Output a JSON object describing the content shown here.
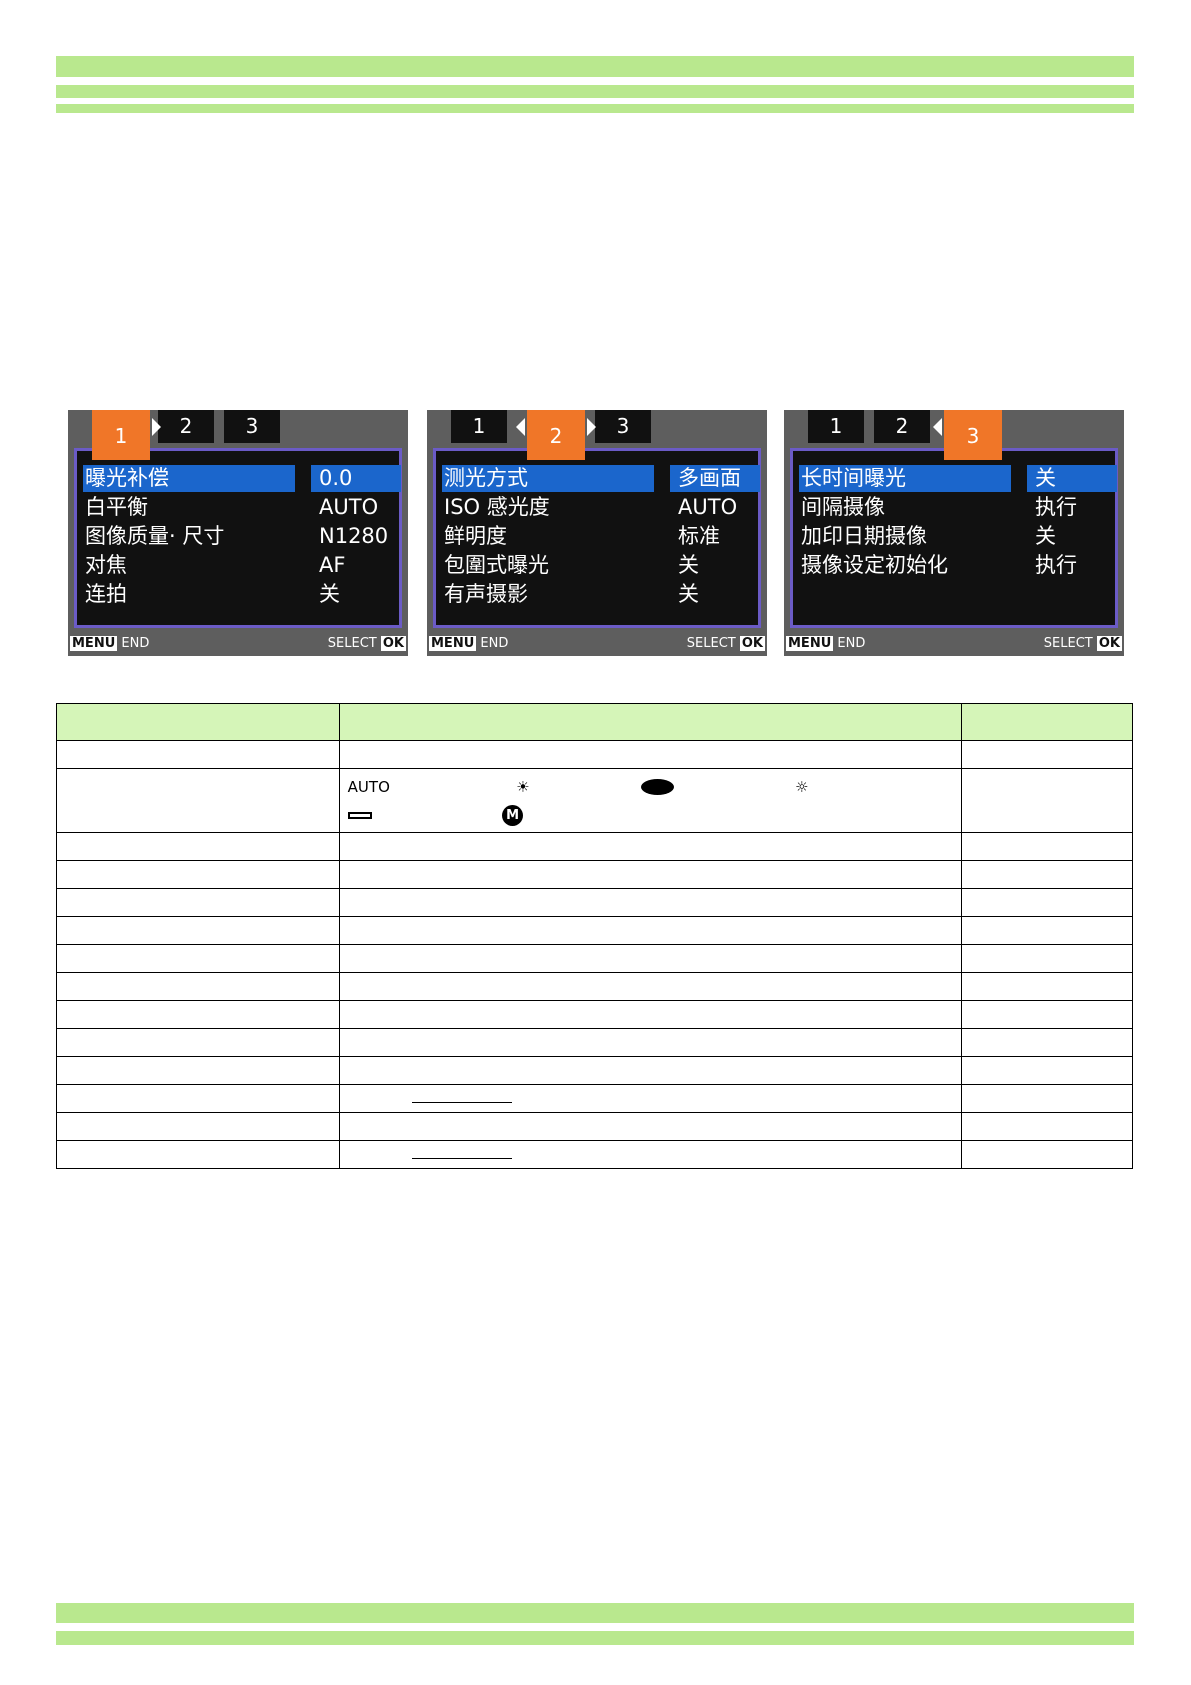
{
  "screens": [
    {
      "tabs": [
        "1",
        "2",
        "3"
      ],
      "active": 0,
      "items": [
        [
          "曝光补偿",
          "0.0"
        ],
        [
          "白平衡",
          "AUTO"
        ],
        [
          "图像质量· 尺寸",
          "N1280"
        ],
        [
          "对焦",
          "AF"
        ],
        [
          "连拍",
          "关"
        ]
      ],
      "footer_left_key": "MENU",
      "footer_left": "END",
      "footer_right": "SELECT",
      "footer_right_key": "OK"
    },
    {
      "tabs": [
        "1",
        "2",
        "3"
      ],
      "active": 1,
      "items": [
        [
          "测光方式",
          "多画面"
        ],
        [
          "ISO 感光度",
          "AUTO"
        ],
        [
          "鲜明度",
          "标准"
        ],
        [
          "包圍式曝光",
          "关"
        ],
        [
          "有声摄影",
          "关"
        ]
      ],
      "footer_left_key": "MENU",
      "footer_left": "END",
      "footer_right": "SELECT",
      "footer_right_key": "OK"
    },
    {
      "tabs": [
        "1",
        "2",
        "3"
      ],
      "active": 2,
      "items": [
        [
          "长时间曝光",
          "关"
        ],
        [
          "间隔摄像",
          "执行"
        ],
        [
          "加印日期摄像",
          "关"
        ],
        [
          "摄像设定初始化",
          "执行"
        ]
      ],
      "footer_left_key": "MENU",
      "footer_left": "END",
      "footer_right": "SELECT",
      "footer_right_key": "OK"
    }
  ],
  "table": {
    "wb_icons": {
      "auto": "AUTO",
      "daylight": "sun-icon",
      "cloudy": "cloud-icon",
      "tungsten": "bulb-icon",
      "fluorescent": "fluorescent-icon",
      "manual": "M"
    }
  },
  "colors": {
    "bar": "#b9e88e",
    "header": "#d5f5b8",
    "tab_active": "#f07628",
    "highlight": "#1b66cc"
  }
}
